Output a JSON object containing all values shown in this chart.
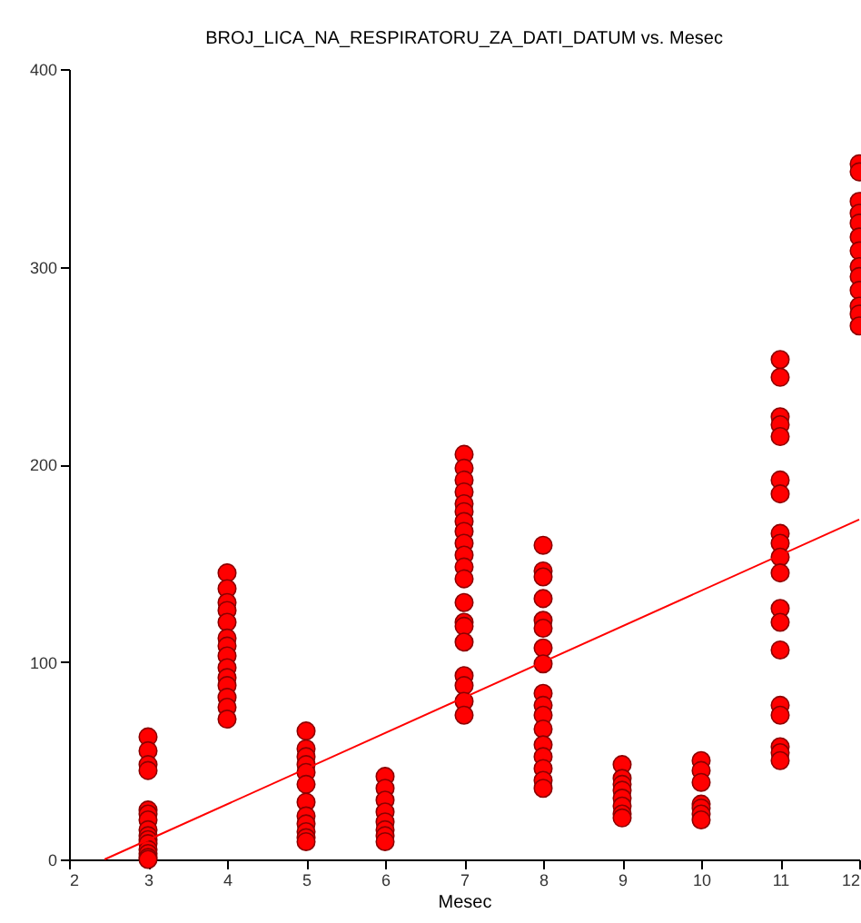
{
  "chart_data": {
    "type": "scatter",
    "title": "BROJ_LICA_NA_RESPIRATORU_ZA_DATI_DATUM vs. Mesec",
    "xlabel": "Mesec",
    "xlim": [
      2,
      12
    ],
    "xticks": [
      2,
      3,
      4,
      5,
      6,
      7,
      8,
      9,
      10,
      11,
      12
    ],
    "ylim": [
      0,
      400
    ],
    "yticks": [
      0,
      100,
      200,
      300,
      400
    ],
    "grid": false,
    "series": [
      {
        "color": "#ff0000",
        "marker": "circle",
        "x": [
          3,
          3,
          3,
          3,
          3,
          3,
          3,
          3,
          3,
          3,
          3,
          3,
          3,
          3,
          3,
          4,
          4,
          4,
          4,
          4,
          4,
          4,
          4,
          4,
          4,
          4,
          4,
          4,
          4,
          5,
          5,
          5,
          5,
          5,
          5,
          5,
          5,
          5,
          5,
          5,
          5,
          6,
          6,
          6,
          6,
          6,
          6,
          6,
          6,
          7,
          7,
          7,
          7,
          7,
          7,
          7,
          7,
          7,
          7,
          7,
          7,
          7,
          7,
          7,
          7,
          7,
          7,
          7,
          7,
          8,
          8,
          8,
          8,
          8,
          8,
          8,
          8,
          8,
          8,
          8,
          8,
          8,
          8,
          8,
          8,
          8,
          9,
          9,
          9,
          9,
          9,
          9,
          9,
          9,
          10,
          10,
          10,
          10,
          10,
          10,
          10,
          11,
          11,
          11,
          11,
          11,
          11,
          11,
          11,
          11,
          11,
          11,
          11,
          11,
          11,
          11,
          11,
          11,
          11,
          11,
          12,
          12,
          12,
          12,
          12,
          12,
          12,
          12,
          12,
          12,
          12,
          12,
          12
        ],
        "values": [
          62,
          55,
          48,
          45,
          25,
          23,
          20,
          15,
          12,
          10,
          8,
          5,
          3,
          1,
          0,
          145,
          137,
          130,
          126,
          120,
          112,
          108,
          103,
          97,
          92,
          88,
          82,
          77,
          71,
          65,
          56,
          52,
          48,
          44,
          38,
          29,
          22,
          18,
          14,
          11,
          9,
          42,
          36,
          30,
          24,
          19,
          15,
          12,
          9,
          205,
          198,
          192,
          186,
          180,
          176,
          171,
          166,
          160,
          154,
          148,
          142,
          130,
          120,
          118,
          110,
          93,
          88,
          80,
          73,
          159,
          146,
          143,
          132,
          121,
          117,
          107,
          99,
          84,
          78,
          73,
          66,
          58,
          52,
          46,
          40,
          36,
          48,
          41,
          38,
          35,
          31,
          27,
          23,
          21,
          50,
          45,
          39,
          28,
          26,
          23,
          20,
          253,
          244,
          224,
          220,
          214,
          192,
          185,
          165,
          160,
          153,
          145,
          127,
          120,
          106,
          78,
          73,
          57,
          54,
          50,
          352,
          348,
          333,
          327,
          322,
          315,
          308,
          300,
          295,
          288,
          280,
          276,
          270
        ]
      },
      {
        "type": "line",
        "color": "#ff0000",
        "marker": "none",
        "x": [
          2.45,
          12
        ],
        "values": [
          0,
          172
        ]
      }
    ]
  }
}
